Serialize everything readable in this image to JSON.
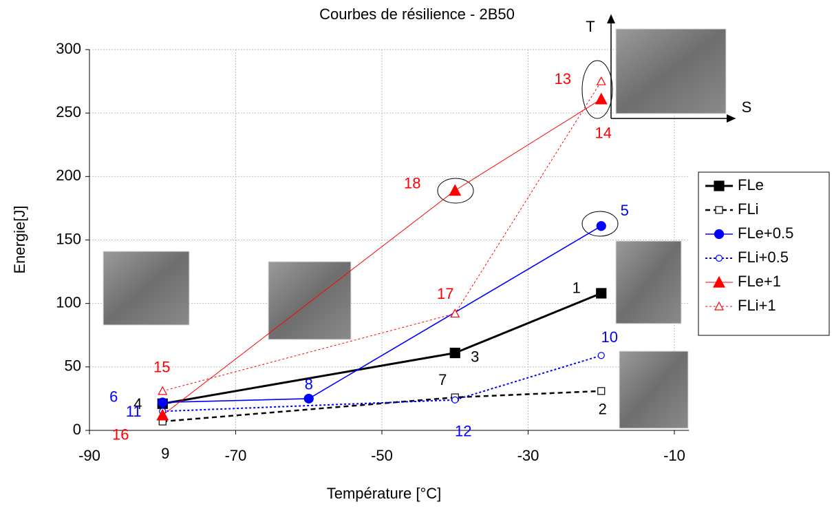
{
  "chart_data": {
    "type": "line",
    "title": "Courbes de résilience - 2B50",
    "x_label": "Température [°C]",
    "y_label": "Energie[J]",
    "xlim": [
      -90,
      -8
    ],
    "xticks": [
      -90,
      -70,
      -50,
      -30,
      -10
    ],
    "ylim": [
      0,
      300
    ],
    "yticks": [
      0,
      50,
      100,
      150,
      200,
      250,
      300
    ],
    "grid": true,
    "legend": "right",
    "inset_axis_labels": [
      "T",
      "S"
    ],
    "series": [
      {
        "name": "FLe",
        "color": "#000000",
        "marker": "square",
        "filled": true,
        "line_style": "solid",
        "x": [
          -80,
          -40,
          -20
        ],
        "values": [
          21,
          61,
          108
        ],
        "point_labels": [
          "4",
          "3",
          "1"
        ]
      },
      {
        "name": "FLi",
        "color": "#000000",
        "marker": "square",
        "filled": false,
        "line_style": "dashed",
        "x": [
          -80,
          -40,
          -20
        ],
        "values": [
          7,
          26,
          31
        ],
        "point_labels": [
          "9",
          "7",
          "2"
        ]
      },
      {
        "name": "FLe+0.5",
        "color": "#0000ff",
        "marker": "circle",
        "filled": true,
        "line_style": "solid",
        "x": [
          -80,
          -60,
          -20
        ],
        "values": [
          22,
          25,
          161
        ],
        "point_labels": [
          "6",
          "8",
          "5"
        ]
      },
      {
        "name": "FLi+0.5",
        "color": "#0000ff",
        "marker": "circle",
        "filled": false,
        "line_style": "dotted",
        "x": [
          -80,
          -40,
          -20
        ],
        "values": [
          15,
          24,
          59
        ],
        "point_labels": [
          "11",
          "12",
          "10"
        ]
      },
      {
        "name": "FLe+1",
        "color": "#ff0000",
        "marker": "triangle",
        "filled": true,
        "line_style": "solid",
        "x": [
          -80,
          -40,
          -20
        ],
        "values": [
          12,
          189,
          261
        ],
        "point_labels": [
          "16",
          "18",
          "14"
        ]
      },
      {
        "name": "FLi+1",
        "color": "#ff0000",
        "marker": "triangle",
        "filled": false,
        "line_style": "dotted",
        "x": [
          -80,
          -40,
          -20
        ],
        "values": [
          31,
          92,
          275
        ],
        "point_labels": [
          "15",
          "17",
          "13"
        ]
      }
    ]
  }
}
